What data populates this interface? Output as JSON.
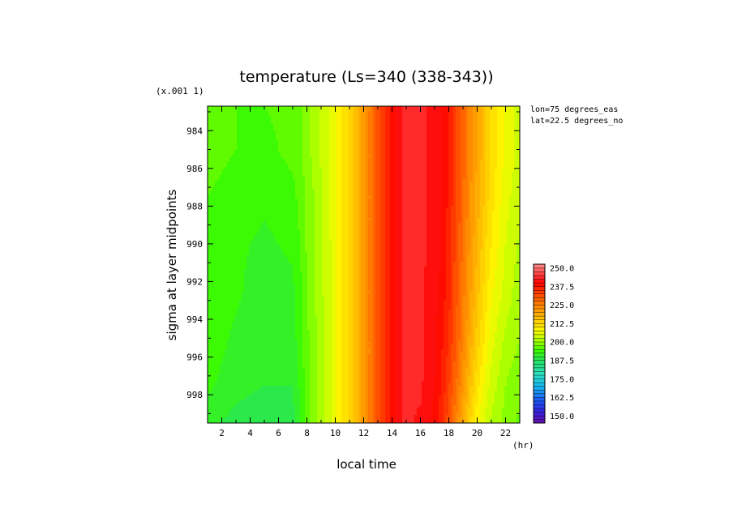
{
  "chart_data": {
    "type": "heatmap",
    "title": "temperature (Ls=340 (338-343))",
    "xlabel": "local time",
    "ylabel": "sigma at layer midpoints",
    "x_unit": "(hr)",
    "y_scale": "(x.001 1)",
    "xlim": [
      1,
      23
    ],
    "ylim": [
      0.9827,
      0.9995
    ],
    "y_inverted": true,
    "x_ticks": [
      2,
      4,
      6,
      8,
      10,
      12,
      14,
      16,
      18,
      20,
      22
    ],
    "y_ticks": [
      984,
      986,
      988,
      990,
      992,
      994,
      996,
      998
    ],
    "annotations": [
      "lon=75 degrees_eas",
      "lat=22.5 degrees_no"
    ],
    "colorbar": {
      "labels": [
        "250.0",
        "237.5",
        "225.0",
        "212.5",
        "200.0",
        "187.5",
        "175.0",
        "162.5",
        "150.0"
      ],
      "min": 145,
      "max": 252.5,
      "step": 2.5
    },
    "x": [
      1,
      3,
      5,
      7,
      7.5,
      8,
      8.5,
      9,
      9.5,
      10,
      10.5,
      11,
      11.5,
      12,
      12.5,
      13,
      13.5,
      14,
      14.5,
      15,
      16,
      17,
      17.5,
      18,
      18.5,
      19,
      19.5,
      20,
      20.5,
      21,
      22,
      23
    ],
    "y": [
      0.9827,
      0.985,
      0.9875,
      0.99,
      0.9925,
      0.995,
      0.9975,
      0.9995
    ],
    "values": [
      [
        196,
        195,
        195,
        196,
        197,
        199,
        201,
        203,
        205,
        207,
        210,
        213,
        217,
        221,
        226,
        231,
        235,
        239,
        242,
        243,
        243,
        242,
        240,
        237,
        233,
        229,
        224,
        220,
        216,
        212,
        207,
        204
      ],
      [
        196,
        195,
        194,
        196,
        197,
        199,
        201,
        203,
        205,
        207,
        210,
        213,
        217,
        221,
        226,
        231,
        235,
        239,
        242,
        243,
        243,
        242,
        240,
        237,
        233,
        229,
        224,
        220,
        216,
        212,
        207,
        204
      ],
      [
        195,
        194,
        193,
        194,
        196,
        198,
        200,
        202,
        205,
        207,
        210,
        213,
        217,
        221,
        226,
        231,
        235,
        239,
        242,
        243,
        243,
        242,
        240,
        237,
        233,
        228,
        223,
        219,
        215,
        211,
        206,
        203
      ],
      [
        195,
        193,
        192,
        193,
        195,
        198,
        200,
        202,
        204,
        207,
        210,
        213,
        217,
        221,
        226,
        231,
        235,
        239,
        242,
        243,
        243,
        242,
        240,
        236,
        232,
        227,
        222,
        218,
        213,
        210,
        205,
        202
      ],
      [
        194,
        193,
        191,
        192,
        194,
        197,
        200,
        202,
        204,
        207,
        210,
        213,
        217,
        221,
        226,
        231,
        235,
        239,
        242,
        243,
        243,
        241,
        239,
        236,
        231,
        226,
        221,
        216,
        212,
        208,
        204,
        201
      ],
      [
        194,
        192,
        191,
        191,
        194,
        197,
        199,
        201,
        204,
        207,
        210,
        213,
        217,
        221,
        226,
        231,
        235,
        239,
        242,
        243,
        243,
        241,
        238,
        235,
        230,
        225,
        219,
        214,
        210,
        206,
        202,
        200
      ],
      [
        193,
        191,
        190,
        190,
        193,
        196,
        199,
        201,
        204,
        207,
        210,
        213,
        217,
        221,
        226,
        231,
        235,
        239,
        242,
        243,
        243,
        240,
        237,
        233,
        228,
        222,
        216,
        211,
        207,
        204,
        200,
        198
      ],
      [
        191,
        189,
        188,
        189,
        192,
        196,
        199,
        201,
        204,
        207,
        210,
        213,
        217,
        221,
        226,
        231,
        235,
        239,
        242,
        243,
        242,
        239,
        236,
        231,
        225,
        219,
        213,
        208,
        205,
        202,
        199,
        197
      ]
    ]
  }
}
